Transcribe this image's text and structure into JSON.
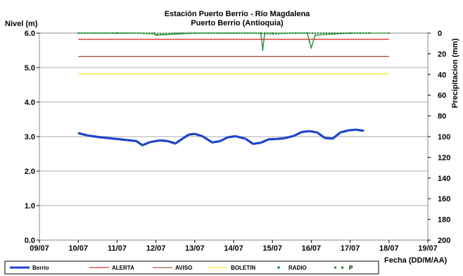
{
  "chart_data": {
    "type": "line",
    "title": "Estación Puerto Berrío - Río Magdalena",
    "subtitle": "Puerto Berrio (Antioquia)",
    "ylabel": "Nivel (m)",
    "y2label": "Precipitacion (mm)",
    "xlabel": "Fecha (DD/M/AA)",
    "x_ticks": [
      "09/07",
      "10/07",
      "11/07",
      "12/07",
      "13/07",
      "14/07",
      "15/07",
      "16/07",
      "17/07",
      "18/07",
      "19/07"
    ],
    "y_ticks": [
      "0.0",
      "1.0",
      "2.0",
      "3.0",
      "4.0",
      "5.0",
      "6.0"
    ],
    "y2_ticks": [
      "0",
      "20",
      "40",
      "60",
      "80",
      "100",
      "120",
      "140",
      "160",
      "180",
      "200"
    ],
    "ylim": [
      0,
      6
    ],
    "y2lim": [
      0,
      200
    ],
    "y2_inverted": true,
    "grid": "horizontal",
    "legend_position": "bottom",
    "series": [
      {
        "name": "Berrio",
        "color": "#1c3fd6",
        "x": [
          0.0,
          0.25,
          0.5,
          0.75,
          1.0,
          1.25,
          1.5,
          1.65,
          1.85,
          2.1,
          2.3,
          2.5,
          2.7,
          2.85,
          3.0,
          3.2,
          3.45,
          3.65,
          3.85,
          4.05,
          4.3,
          4.5,
          4.7,
          4.9,
          5.1,
          5.3,
          5.55,
          5.75,
          5.95,
          6.15,
          6.35,
          6.55,
          6.75,
          6.95,
          7.15,
          7.35
        ],
        "values": [
          3.1,
          3.03,
          2.99,
          2.96,
          2.93,
          2.9,
          2.87,
          2.75,
          2.84,
          2.89,
          2.87,
          2.8,
          2.95,
          3.06,
          3.08,
          3.01,
          2.83,
          2.87,
          2.98,
          3.01,
          2.94,
          2.79,
          2.82,
          2.92,
          2.93,
          2.95,
          3.02,
          3.13,
          3.16,
          3.12,
          2.96,
          2.94,
          3.12,
          3.18,
          3.2,
          3.17
        ]
      },
      {
        "name": "ALERTA",
        "color": "#e0332b",
        "x": [
          0.0,
          8.0
        ],
        "values": [
          5.82,
          5.82
        ]
      },
      {
        "name": "AVISO",
        "color": "#a05a3c",
        "x": [
          0.0,
          8.0
        ],
        "values": [
          5.32,
          5.32
        ]
      },
      {
        "name": "BOLETIN",
        "color": "#f4ef3a",
        "x": [
          0.0,
          8.0
        ],
        "values": [
          4.82,
          4.82
        ]
      },
      {
        "name": "RADIO",
        "color": "#1f8a2e",
        "axis": "y2",
        "x": [
          0.0,
          0.5,
          1.0,
          1.5,
          2.0,
          2.5,
          3.0,
          3.5,
          4.0,
          4.5,
          5.0,
          5.5,
          6.0,
          6.5,
          7.0,
          7.5
        ],
        "values": [
          0,
          0,
          0,
          0,
          1,
          0,
          0,
          0,
          0,
          0,
          1,
          0,
          0,
          0,
          0,
          0
        ]
      },
      {
        "name": "P",
        "color": "#1f8a2e",
        "axis": "y2",
        "x": [
          0.0,
          1.0,
          1.95,
          2.0,
          3.0,
          4.0,
          4.7,
          4.75,
          4.8,
          5.0,
          5.9,
          5.95,
          6.0,
          6.1,
          7.0,
          7.5,
          8.0
        ],
        "values": [
          0,
          0,
          0,
          2,
          0,
          0,
          0,
          16,
          0,
          0,
          0,
          8,
          14,
          2,
          0,
          0,
          0
        ]
      }
    ]
  }
}
